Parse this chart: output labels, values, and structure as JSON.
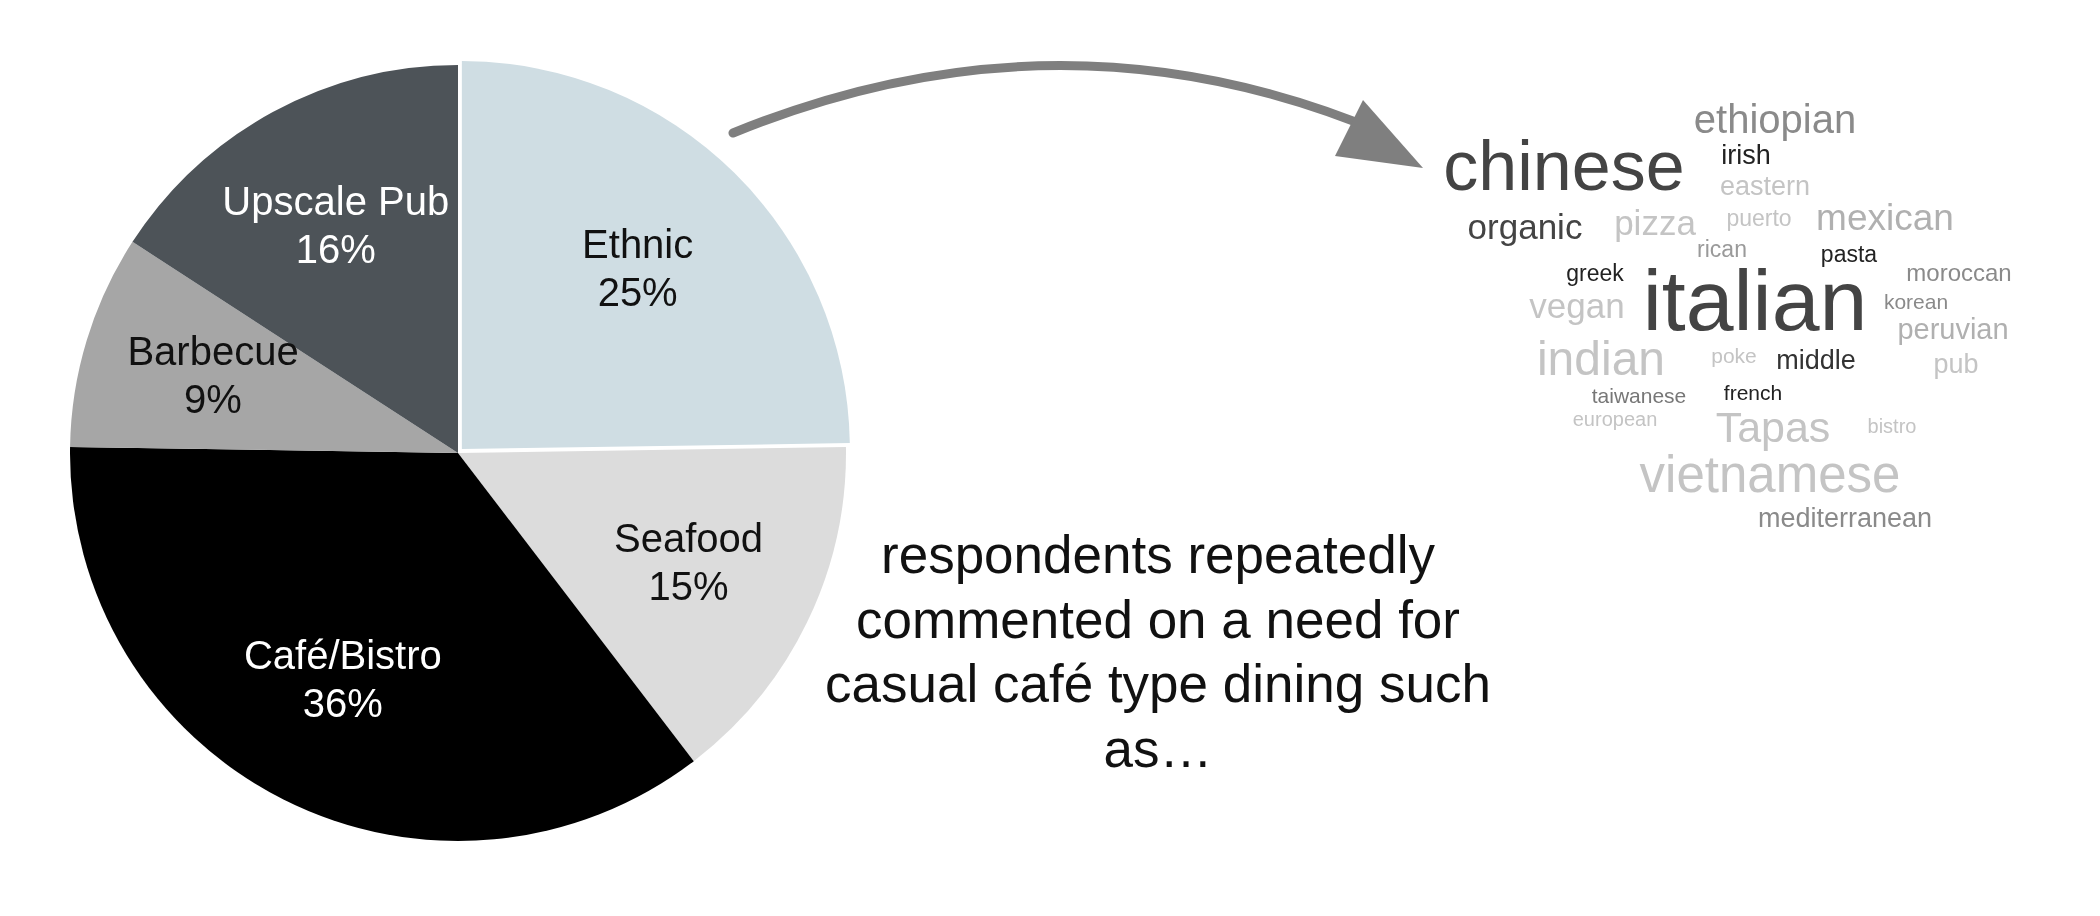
{
  "chart_data": {
    "type": "pie",
    "categories": [
      "Ethnic",
      "Seafood",
      "Café/Bistro",
      "Barbecue",
      "Upscale Pub"
    ],
    "values": [
      25,
      15,
      36,
      9,
      16
    ],
    "colors": [
      "#cfdde3",
      "#dcdcdc",
      "#000000",
      "#a6a6a6",
      "#4d5358"
    ],
    "value_labels": [
      "25%",
      "15%",
      "36%",
      "9%",
      "16%"
    ],
    "annotations": [
      "respondents repeatedly commented on a need for casual café type dining such as…",
      "ethiopian",
      "chinese",
      "irish",
      "eastern",
      "organic",
      "pizza",
      "puerto",
      "mexican",
      "rican",
      "pasta",
      "greek",
      "moroccan",
      "vegan",
      "italian",
      "korean",
      "peruvian",
      "indian",
      "poke",
      "middle",
      "pub",
      "taiwanese",
      "french",
      "european",
      "Tapas",
      "bistro",
      "vietnamese",
      "mediterranean"
    ]
  }
}
